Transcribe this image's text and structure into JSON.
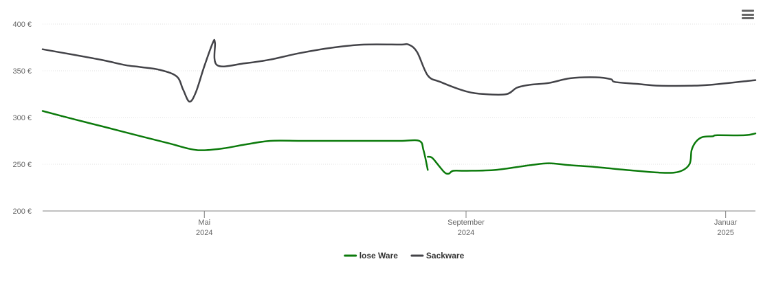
{
  "menu_icon": "hamburger-menu-icon",
  "chart_data": {
    "type": "line",
    "title": "",
    "xlabel": "",
    "ylabel": "",
    "x_range": [
      "2024-02-15",
      "2025-01-15"
    ],
    "ylim": [
      200,
      400
    ],
    "y_ticks": [
      200,
      250,
      300,
      350,
      400
    ],
    "y_tick_labels": [
      "200 €",
      "250 €",
      "300 €",
      "350 €",
      "400 €"
    ],
    "x_ticks": [
      {
        "date": "2024-05-01",
        "line1": "Mai",
        "line2": "2024"
      },
      {
        "date": "2024-09-01",
        "line1": "September",
        "line2": "2024"
      },
      {
        "date": "2025-01-01",
        "line1": "Januar",
        "line2": "2025"
      }
    ],
    "grid": "horizontal dotted",
    "legend_position": "bottom-center",
    "series": [
      {
        "name": "lose Ware",
        "color": "#0b7a0b",
        "segments": [
          [
            [
              "2024-02-15",
              307
            ],
            [
              "2024-03-01",
              298
            ],
            [
              "2024-03-15",
              290
            ],
            [
              "2024-04-01",
              280
            ],
            [
              "2024-04-15",
              272
            ],
            [
              "2024-04-25",
              266
            ],
            [
              "2024-05-01",
              265
            ],
            [
              "2024-05-10",
              267
            ],
            [
              "2024-05-20",
              271
            ],
            [
              "2024-06-01",
              275
            ],
            [
              "2024-06-15",
              275
            ],
            [
              "2024-07-01",
              275
            ],
            [
              "2024-07-15",
              275
            ],
            [
              "2024-08-01",
              275
            ],
            [
              "2024-08-10",
              275
            ],
            [
              "2024-08-12",
              265
            ],
            [
              "2024-08-14",
              244
            ]
          ],
          [
            [
              "2024-08-14",
              258
            ],
            [
              "2024-08-16",
              257
            ],
            [
              "2024-08-19",
              249
            ],
            [
              "2024-08-22",
              241
            ],
            [
              "2024-08-24",
              240
            ],
            [
              "2024-08-26",
              243
            ],
            [
              "2024-09-01",
              243
            ],
            [
              "2024-09-15",
              244
            ],
            [
              "2024-10-01",
              249
            ],
            [
              "2024-10-10",
              251
            ],
            [
              "2024-10-20",
              249
            ],
            [
              "2024-11-01",
              247
            ],
            [
              "2024-11-15",
              244
            ],
            [
              "2024-12-01",
              241
            ],
            [
              "2024-12-10",
              242
            ],
            [
              "2024-12-15",
              250
            ],
            [
              "2024-12-16",
              265
            ],
            [
              "2024-12-18",
              274
            ],
            [
              "2024-12-21",
              279
            ],
            [
              "2024-12-26",
              280
            ],
            [
              "2024-12-28",
              281
            ],
            [
              "2025-01-10",
              281
            ],
            [
              "2025-01-15",
              283
            ]
          ]
        ]
      },
      {
        "name": "Sackware",
        "color": "#434348",
        "segments": [
          [
            [
              "2024-02-15",
              373
            ],
            [
              "2024-03-01",
              367
            ],
            [
              "2024-03-15",
              361
            ],
            [
              "2024-03-25",
              356
            ],
            [
              "2024-04-01",
              354
            ],
            [
              "2024-04-10",
              351
            ],
            [
              "2024-04-18",
              344
            ],
            [
              "2024-04-21",
              330
            ],
            [
              "2024-04-24",
              317
            ],
            [
              "2024-04-27",
              327
            ],
            [
              "2024-05-01",
              355
            ],
            [
              "2024-05-05",
              380
            ],
            [
              "2024-05-06",
              380
            ],
            [
              "2024-05-07",
              356
            ],
            [
              "2024-05-20",
              358
            ],
            [
              "2024-06-01",
              362
            ],
            [
              "2024-06-15",
              369
            ],
            [
              "2024-07-01",
              375
            ],
            [
              "2024-07-15",
              378
            ],
            [
              "2024-08-01",
              378
            ],
            [
              "2024-08-05",
              378
            ],
            [
              "2024-08-09",
              370
            ],
            [
              "2024-08-14",
              345
            ],
            [
              "2024-08-20",
              338
            ],
            [
              "2024-09-01",
              328
            ],
            [
              "2024-09-10",
              325
            ],
            [
              "2024-09-20",
              325
            ],
            [
              "2024-09-25",
              332
            ],
            [
              "2024-10-01",
              335
            ],
            [
              "2024-10-10",
              337
            ],
            [
              "2024-10-20",
              342
            ],
            [
              "2024-11-01",
              343
            ],
            [
              "2024-11-08",
              341
            ],
            [
              "2024-11-10",
              338
            ],
            [
              "2024-11-20",
              336
            ],
            [
              "2024-12-01",
              334
            ],
            [
              "2024-12-15",
              334
            ],
            [
              "2024-12-25",
              335
            ],
            [
              "2025-01-15",
              340
            ]
          ]
        ]
      }
    ]
  }
}
